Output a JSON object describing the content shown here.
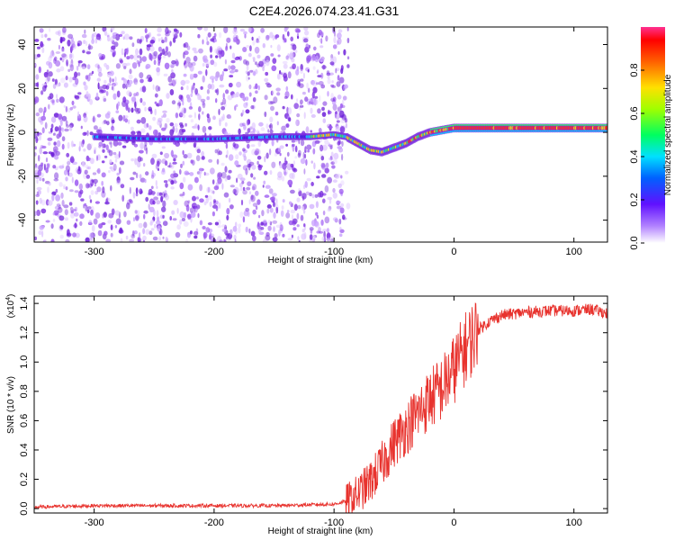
{
  "title": "C2E4.2026.074.23.41.G31",
  "colors": {
    "snr_line": "#e8332e",
    "spectrogram_dots": "#7a2be0",
    "ridge_colors": [
      "#00d8ff",
      "#30ff60",
      "#ffe000",
      "#ff3020"
    ]
  },
  "chart_data": [
    {
      "type": "heatmap",
      "xlabel": "Height of straight line (km)",
      "ylabel": "Frequency (Hz)",
      "xlim": [
        -350,
        128
      ],
      "ylim": [
        -50,
        48
      ],
      "x_ticks": [
        "-300",
        "-200",
        "-100",
        "0",
        "100"
      ],
      "x_tick_values": [
        -300,
        -200,
        -100,
        0,
        100
      ],
      "y_ticks": [
        "40",
        "20",
        "0",
        "-20",
        "-40"
      ],
      "y_tick_values": [
        40,
        20,
        0,
        -20,
        -40
      ],
      "grid": false,
      "ridge": {
        "x": [
          -300,
          -250,
          -200,
          -150,
          -120,
          -100,
          -90,
          -80,
          -70,
          -60,
          -50,
          -40,
          -30,
          -20,
          -10,
          0,
          50,
          100,
          128
        ],
        "frequency": [
          -2,
          -3,
          -3,
          -2,
          -2,
          -1,
          -2,
          -5,
          -8,
          -9,
          -7,
          -5,
          -2,
          0,
          1,
          2,
          2,
          2,
          2
        ]
      },
      "colorbar": {
        "label": "Normalized spectral amplitude",
        "range": [
          0,
          1
        ],
        "ticks": [
          "0.0",
          "0.2",
          "0.4",
          "0.6",
          "0.8"
        ],
        "tick_values": [
          0,
          0.2,
          0.4,
          0.6,
          0.8
        ]
      }
    },
    {
      "type": "line",
      "xlabel": "Height of straight line (km)",
      "ylabel": "SNR (10 * v/v)",
      "yscale_note": "(x10",
      "yscale_exp": "4",
      "xlim": [
        -350,
        128
      ],
      "ylim": [
        -0.03,
        1.45
      ],
      "x_ticks": [
        "-300",
        "-200",
        "-100",
        "0",
        "100"
      ],
      "x_tick_values": [
        -300,
        -200,
        -100,
        0,
        100
      ],
      "y_ticks": [
        "0.0",
        "0.2",
        "0.4",
        "0.6",
        "0.8",
        "1.0",
        "1.2",
        "1.4"
      ],
      "y_tick_values": [
        0,
        0.2,
        0.4,
        0.6,
        0.8,
        1.0,
        1.2,
        1.4
      ],
      "grid": false,
      "series": [
        {
          "x": [
            -350,
            -300,
            -250,
            -200,
            -150,
            -100,
            -90,
            -80,
            -70,
            -60,
            -50,
            -40,
            -30,
            -20,
            -10,
            0,
            10,
            20,
            30,
            40,
            60,
            80,
            100,
            115,
            128
          ],
          "y": [
            0.01,
            0.02,
            0.02,
            0.02,
            0.02,
            0.03,
            0.05,
            0.1,
            0.18,
            0.3,
            0.45,
            0.55,
            0.65,
            0.75,
            0.82,
            0.95,
            1.1,
            1.22,
            1.28,
            1.32,
            1.34,
            1.35,
            1.35,
            1.36,
            1.33
          ]
        }
      ]
    }
  ]
}
